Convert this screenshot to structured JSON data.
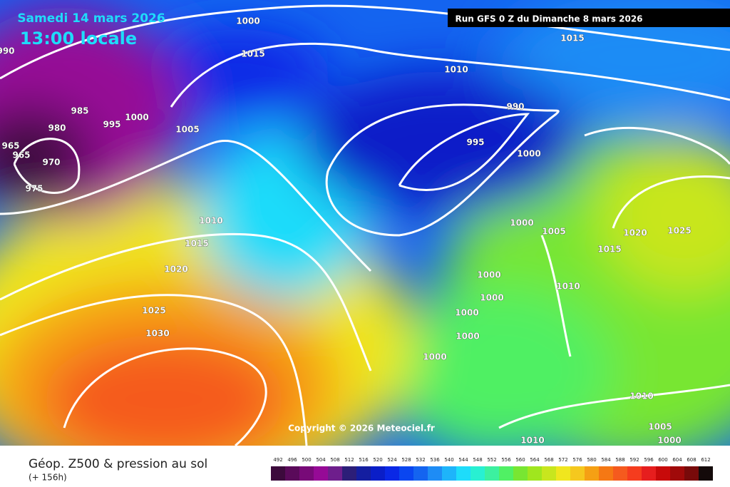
{
  "header": {
    "date": "Samedi 14 mars 2026",
    "time": "13:00 locale",
    "run": "Run GFS 0 Z du Dimanche 8 mars 2026"
  },
  "copyright": "Copyright © 2026 Meteociel.fr",
  "footer": {
    "title": "Géop. Z500 & pression au sol",
    "lead": "(+ 156h)"
  },
  "isobar_labels": [
    "1000",
    "1015",
    "1015",
    "1010",
    "990",
    "995",
    "1000",
    "985",
    "980",
    "995",
    "1000",
    "1005",
    "965",
    "965",
    "970",
    "975",
    "990",
    "1010",
    "1015",
    "1020",
    "1025",
    "1030",
    "1000",
    "1005",
    "1020",
    "1025",
    "1015",
    "1000",
    "1000",
    "1010",
    "1000",
    "1000",
    "1000",
    "1010",
    "1005",
    "1000",
    "1010"
  ],
  "legend": {
    "values": [
      492,
      496,
      500,
      504,
      508,
      512,
      516,
      520,
      524,
      528,
      532,
      536,
      540,
      544,
      548,
      552,
      556,
      560,
      564,
      568,
      572,
      576,
      580,
      584,
      588,
      592,
      596,
      600,
      604,
      608,
      612
    ],
    "colors": [
      "#3c0a3c",
      "#5a0a5a",
      "#780a78",
      "#960a96",
      "#6e1e8c",
      "#2c1e78",
      "#141ea0",
      "#0a1ec8",
      "#0a28e6",
      "#0a46f0",
      "#1464f0",
      "#1e8cf5",
      "#1eb4fa",
      "#1edcfa",
      "#28f0d2",
      "#3cf0a0",
      "#50f064",
      "#78e632",
      "#a0e61e",
      "#c8e61e",
      "#f0e61e",
      "#f5c81e",
      "#f5a014",
      "#f57814",
      "#f55a1e",
      "#f53c1e",
      "#e61e1e",
      "#c80a0a",
      "#a00a0a",
      "#780a0a",
      "#140a0a"
    ]
  }
}
